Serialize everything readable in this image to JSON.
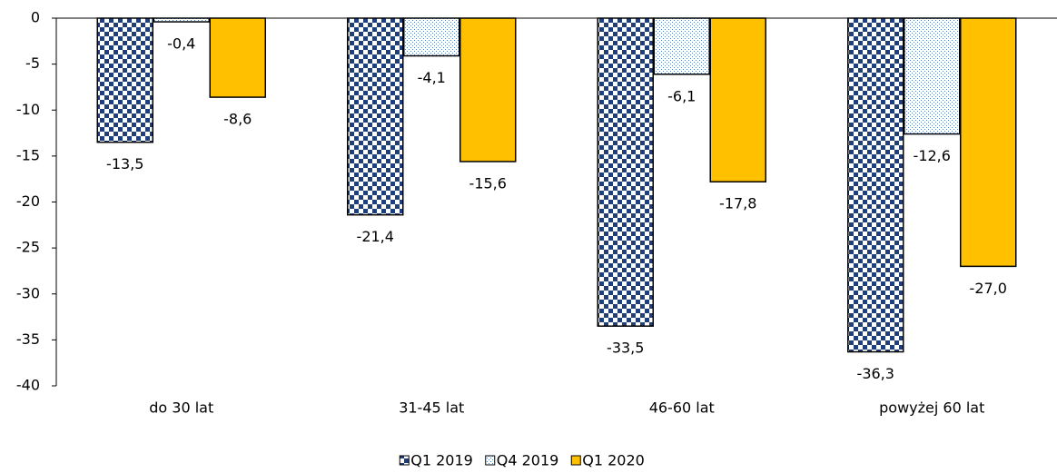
{
  "chart_data": {
    "type": "bar",
    "categories": [
      "do 30 lat",
      "31-45 lat",
      "46-60 lat",
      "powyżej 60 lat"
    ],
    "series": [
      {
        "name": "Q1 2019",
        "color": "#1f3f7a",
        "pattern": "checker",
        "values": [
          -13.5,
          -21.4,
          -33.5,
          -36.3
        ],
        "value_labels": [
          "-13,5",
          "-21,4",
          "-33,5",
          "-36,3"
        ]
      },
      {
        "name": "Q4 2019",
        "color": "#4f81bd",
        "pattern": "dots",
        "values": [
          -0.4,
          -4.1,
          -6.1,
          -12.6
        ],
        "value_labels": [
          "-0,4",
          "-4,1",
          "-6,1",
          "-12,6"
        ]
      },
      {
        "name": "Q1 2020",
        "color": "#ffc000",
        "pattern": "solid",
        "values": [
          -8.6,
          -15.6,
          -17.8,
          -27.0
        ],
        "value_labels": [
          "-8,6",
          "-15,6",
          "-17,8",
          "-27,0"
        ]
      }
    ],
    "ylim": [
      -40,
      0
    ],
    "yticks": [
      0,
      -5,
      -10,
      -15,
      -20,
      -25,
      -30,
      -35,
      -40
    ],
    "grid": false,
    "legend": "bottom"
  }
}
